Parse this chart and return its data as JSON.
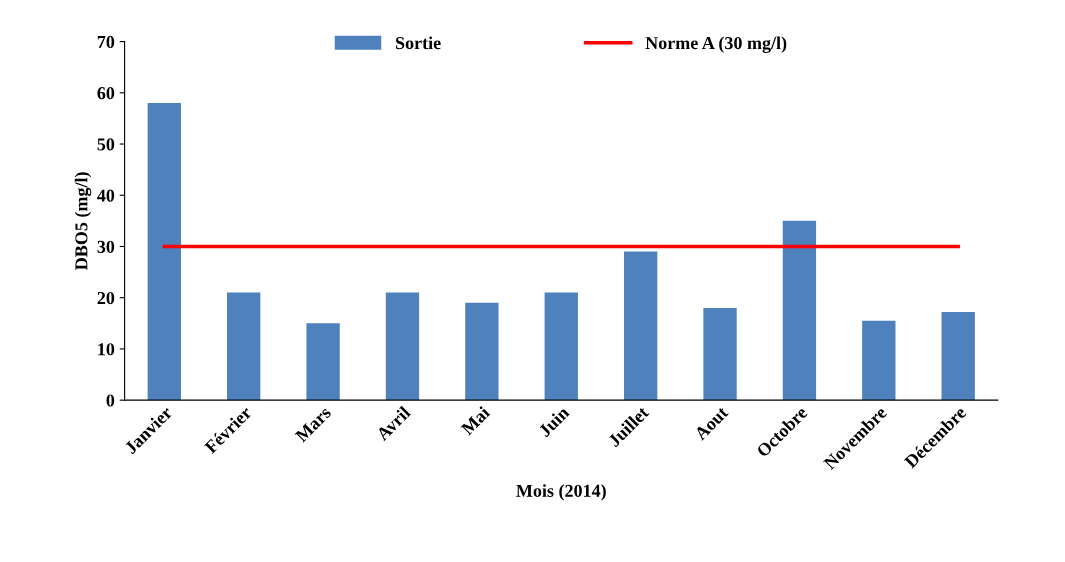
{
  "chart_data": {
    "type": "bar",
    "xlabel": "Mois (2014)",
    "ylabel": "DBO5 (mg/l)",
    "categories": [
      "Janvier",
      "Février",
      "Mars",
      "Avril",
      "Mai",
      "Juin",
      "Juillet",
      "Aout",
      "Octobre",
      "Novembre",
      "Décembre"
    ],
    "series": [
      {
        "name": "Sortie",
        "color": "#4f81bd",
        "values": [
          58,
          21,
          15,
          21,
          19,
          21,
          29,
          18,
          35,
          15.5,
          17.2
        ]
      },
      {
        "name": "Norme A (30 mg/l)",
        "type": "line",
        "color": "#ff0000",
        "values": [
          30,
          30,
          30,
          30,
          30,
          30,
          30,
          30,
          30,
          30,
          30
        ]
      }
    ],
    "ylim": [
      0,
      70
    ],
    "yticks": [
      0,
      10,
      20,
      30,
      40,
      50,
      60,
      70
    ],
    "grid": false,
    "legend": "top",
    "marker": "none",
    "line_style": "solid"
  }
}
